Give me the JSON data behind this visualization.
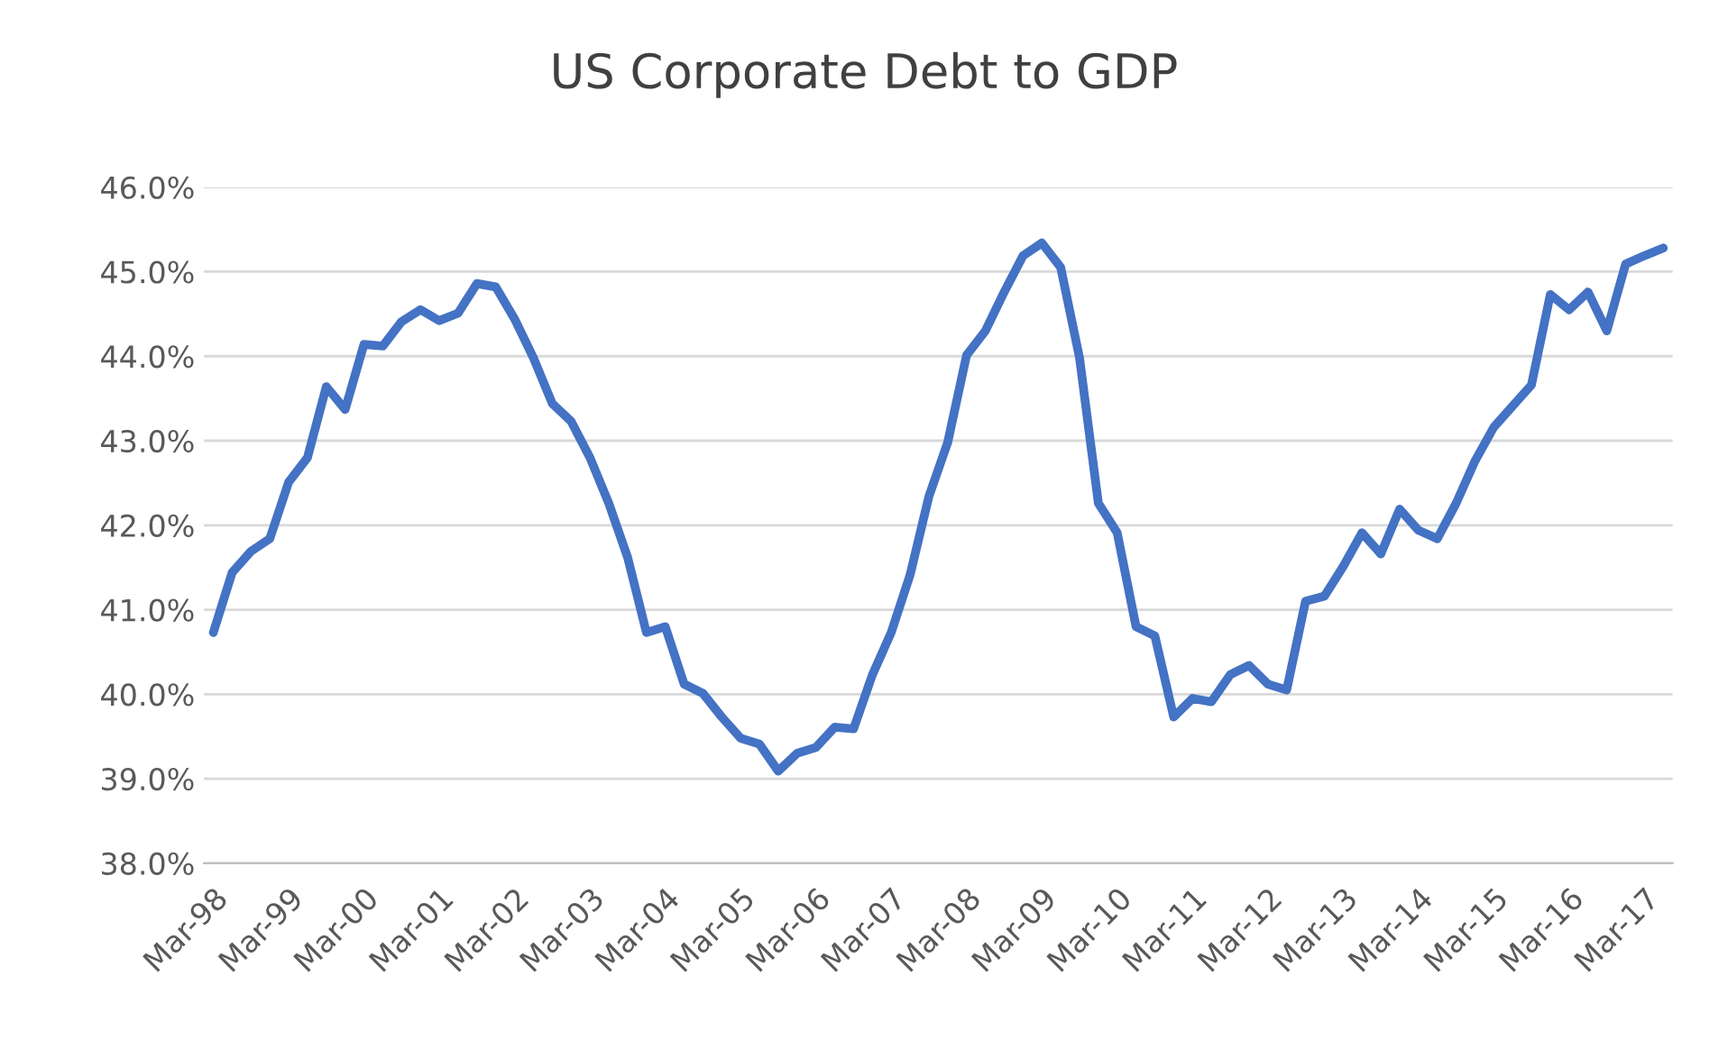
{
  "chart_data": {
    "type": "line",
    "title": "US Corporate Debt to GDP",
    "categories": [
      "Mar-98",
      null,
      null,
      null,
      "Mar-99",
      null,
      null,
      null,
      "Mar-00",
      null,
      null,
      null,
      "Mar-01",
      null,
      null,
      null,
      "Mar-02",
      null,
      null,
      null,
      "Mar-03",
      null,
      null,
      null,
      "Mar-04",
      null,
      null,
      null,
      "Mar-05",
      null,
      null,
      null,
      "Mar-06",
      null,
      null,
      null,
      "Mar-07",
      null,
      null,
      null,
      "Mar-08",
      null,
      null,
      null,
      "Mar-09",
      null,
      null,
      null,
      "Mar-10",
      null,
      null,
      null,
      "Mar-11",
      null,
      null,
      null,
      "Mar-12",
      null,
      null,
      null,
      "Mar-13",
      null,
      null,
      null,
      "Mar-14",
      null,
      null,
      null,
      "Mar-15",
      null,
      null,
      null,
      "Mar-16",
      null,
      null,
      null,
      "Mar-17",
      null
    ],
    "series": [
      {
        "color": "#4472c4",
        "values": [
          40.73,
          41.44,
          41.69,
          41.84,
          42.51,
          42.8,
          43.64,
          43.37,
          44.14,
          44.12,
          44.41,
          44.55,
          44.42,
          44.51,
          44.86,
          44.82,
          44.44,
          43.98,
          43.44,
          43.23,
          42.8,
          42.26,
          41.62,
          40.73,
          40.8,
          40.12,
          40.01,
          39.73,
          39.48,
          39.41,
          39.09,
          39.3,
          39.37,
          39.61,
          39.59,
          40.23,
          40.73,
          41.41,
          42.34,
          42.98,
          44.01,
          44.3,
          44.76,
          45.19,
          45.34,
          45.05,
          43.98,
          42.26,
          41.91,
          40.8,
          40.69,
          39.73,
          39.95,
          39.91,
          40.23,
          40.34,
          40.12,
          40.05,
          41.1,
          41.16,
          41.51,
          41.91,
          41.66,
          42.19,
          41.94,
          41.84,
          42.26,
          42.76,
          43.16,
          43.41,
          43.66,
          44.73,
          44.55,
          44.76,
          44.3,
          45.09,
          45.19,
          45.28
        ]
      }
    ],
    "ylim": [
      38,
      46
    ],
    "yticks": [
      {
        "value": 38,
        "label": "38.0%"
      },
      {
        "value": 39,
        "label": "39.0%"
      },
      {
        "value": 40,
        "label": "40.0%"
      },
      {
        "value": 41,
        "label": "41.0%"
      },
      {
        "value": 42,
        "label": "42.0%"
      },
      {
        "value": 43,
        "label": "43.0%"
      },
      {
        "value": 44,
        "label": "44.0%"
      },
      {
        "value": 45,
        "label": "45.0%"
      },
      {
        "value": 46,
        "label": "46.0%"
      }
    ],
    "grid": "y",
    "marker": "none",
    "line_style": "solid",
    "legend": false
  }
}
